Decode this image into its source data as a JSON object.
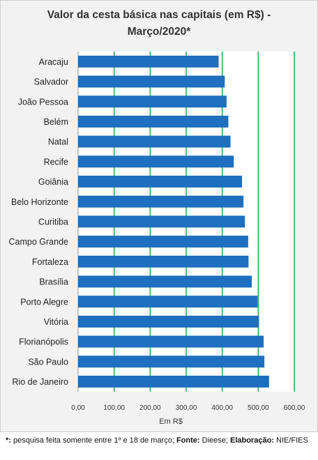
{
  "title_line1": "Valor da cesta básica nas capitais (em R$) -",
  "title_line2": "Março/2020*",
  "chart_data": {
    "type": "bar",
    "orientation": "horizontal",
    "title": "Valor da cesta básica nas capitais (em R$) - Março/2020*",
    "xlabel": "Em R$",
    "ylabel": "",
    "xlim": [
      0,
      600
    ],
    "x_ticks": [
      "0,00",
      "100,00",
      "200,00",
      "300,00",
      "400,00",
      "500,00",
      "600,00"
    ],
    "grid": "vertical, every 100",
    "categories": [
      "Aracaju",
      "Salvador",
      "João Pessoa",
      "Belém",
      "Natal",
      "Recife",
      "Goiânia",
      "Belo Horizonte",
      "Curitiba",
      "Campo Grande",
      "Fortaleza",
      "Brasília",
      "Porto Alegre",
      "Vitória",
      "Florianópolis",
      "São Paulo",
      "Rio de Janeiro"
    ],
    "values": [
      390,
      407,
      412,
      417,
      423,
      432,
      455,
      459,
      463,
      472,
      473,
      482,
      498,
      502,
      515,
      517,
      530
    ]
  },
  "colors": {
    "bar": "#1e6fbe",
    "gridline": "#22a84a",
    "plot_bg": "#ffffff",
    "page_bg": "#f2f2f2"
  },
  "footnote": {
    "marker": "*:",
    "text1": " pesquisa feita somente entre 1º e 18 de março; ",
    "fonte_label": "Fonte:",
    "fonte_value": " Dieese; ",
    "elaboracao_label": "Elaboração:",
    "elaboracao_value": " NIE/FIES"
  }
}
